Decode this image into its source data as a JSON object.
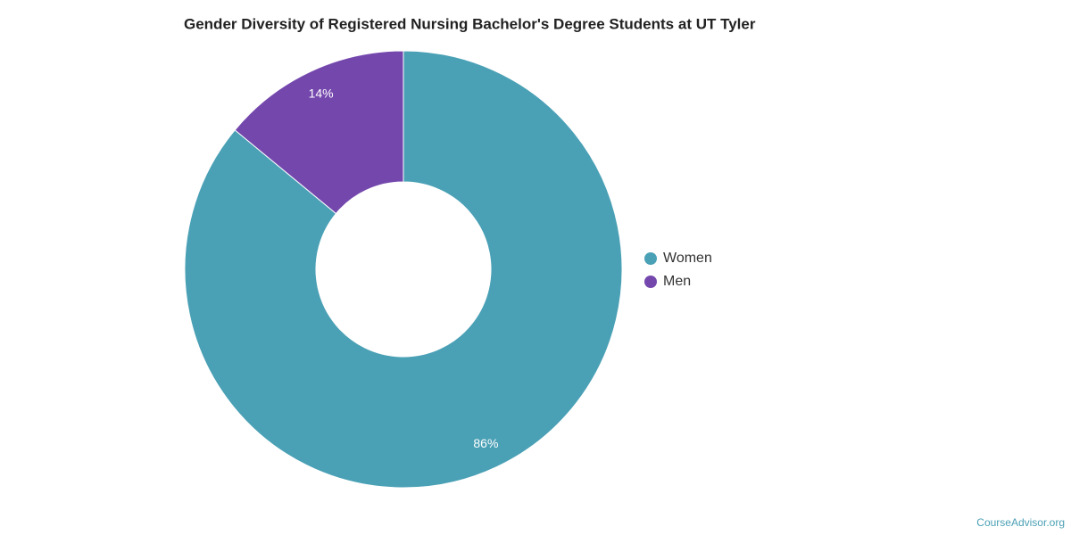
{
  "chart_data": {
    "type": "donut",
    "title": "Gender Diversity of Registered Nursing Bachelor's Degree Students at UT Tyler",
    "categories": [
      "Women",
      "Men"
    ],
    "values": [
      86,
      14
    ],
    "value_labels": [
      "86%",
      "14%"
    ],
    "colors": [
      "#4aa0b5",
      "#7447ad"
    ],
    "legend": "right"
  },
  "watermark": "CourseAdvisor.org"
}
